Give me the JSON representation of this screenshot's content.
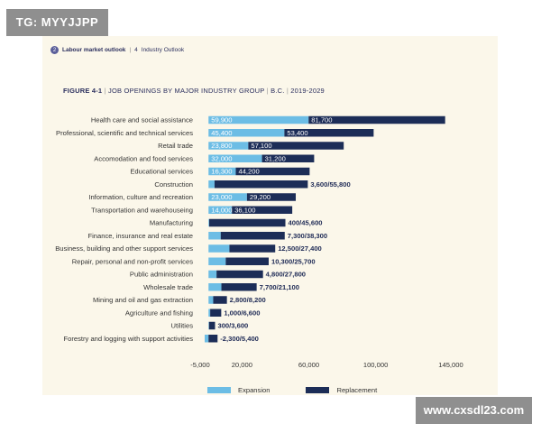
{
  "watermarks": {
    "top_left": "TG: MYYJJPP",
    "bottom_right": "www.cxsdl23.com"
  },
  "header": {
    "page_badge": "2",
    "section": "Labour market outlook",
    "separator": "|",
    "page_num": "4",
    "subsection": "Industry Outlook"
  },
  "figure": {
    "label": "FIGURE 4-1",
    "separator": "|",
    "title": "JOB OPENINGS BY MAJOR INDUSTRY GROUP",
    "region": "B.C.",
    "years": "2019-2029"
  },
  "colors": {
    "expansion": "#6cbde5",
    "replacement": "#1c2d57",
    "background": "#fbf7ea"
  },
  "chart_data": {
    "type": "bar",
    "orientation": "horizontal",
    "stacked": true,
    "categories": [
      "Health care and social assistance",
      "Professional, scientific and technical services",
      "Retail trade",
      "Accomodation and food services",
      "Educational services",
      "Construction",
      "Information, culture and recreation",
      "Transportation and warehouseing",
      "Manufacturing",
      "Finance, insurance and real estate",
      "Business, building and other support services",
      "Repair, personal and non-profit services",
      "Public administration",
      "Wholesale trade",
      "Mining and oil and gas extraction",
      "Agriculture and fishing",
      "Utilities",
      "Forestry and logging with support activities"
    ],
    "series": [
      {
        "name": "Expansion",
        "values": [
          59900,
          45400,
          23800,
          32000,
          16300,
          3600,
          23000,
          14000,
          400,
          7300,
          12500,
          10300,
          4800,
          7700,
          2800,
          1000,
          300,
          -2300
        ]
      },
      {
        "name": "Replacement",
        "values": [
          81700,
          53400,
          57100,
          31200,
          44200,
          55800,
          29200,
          36100,
          45600,
          38300,
          27400,
          25700,
          27800,
          21100,
          8200,
          6600,
          3600,
          5400
        ]
      }
    ],
    "data_labels": [
      [
        "59,900",
        "81,700"
      ],
      [
        "45,400",
        "53,400"
      ],
      [
        "23,800",
        "57,100"
      ],
      [
        "32,000",
        "31,200"
      ],
      [
        "16,300",
        "44,200"
      ],
      [
        "3,600/55,800"
      ],
      [
        "23,000",
        "29,200"
      ],
      [
        "14,000",
        "36,100"
      ],
      [
        "400/45,600"
      ],
      [
        "7,300/38,300"
      ],
      [
        "12,500/27,400"
      ],
      [
        "10,300/25,700"
      ],
      [
        "4,800/27,800"
      ],
      [
        "7,700/21,100"
      ],
      [
        "2,800/8,200"
      ],
      [
        "1,000/6,600"
      ],
      [
        "300/3,600"
      ],
      [
        "-2,300/5,400"
      ]
    ],
    "xlim": [
      -5000,
      145000
    ],
    "xticks": [
      -5000,
      20000,
      60000,
      100000,
      145000
    ],
    "xtick_labels": [
      "-5,000",
      "20,000",
      "60,000",
      "100,000",
      "145,000"
    ],
    "legend": {
      "position": "bottom-center",
      "entries": [
        "Expansion",
        "Replacement"
      ]
    },
    "grid": false
  }
}
